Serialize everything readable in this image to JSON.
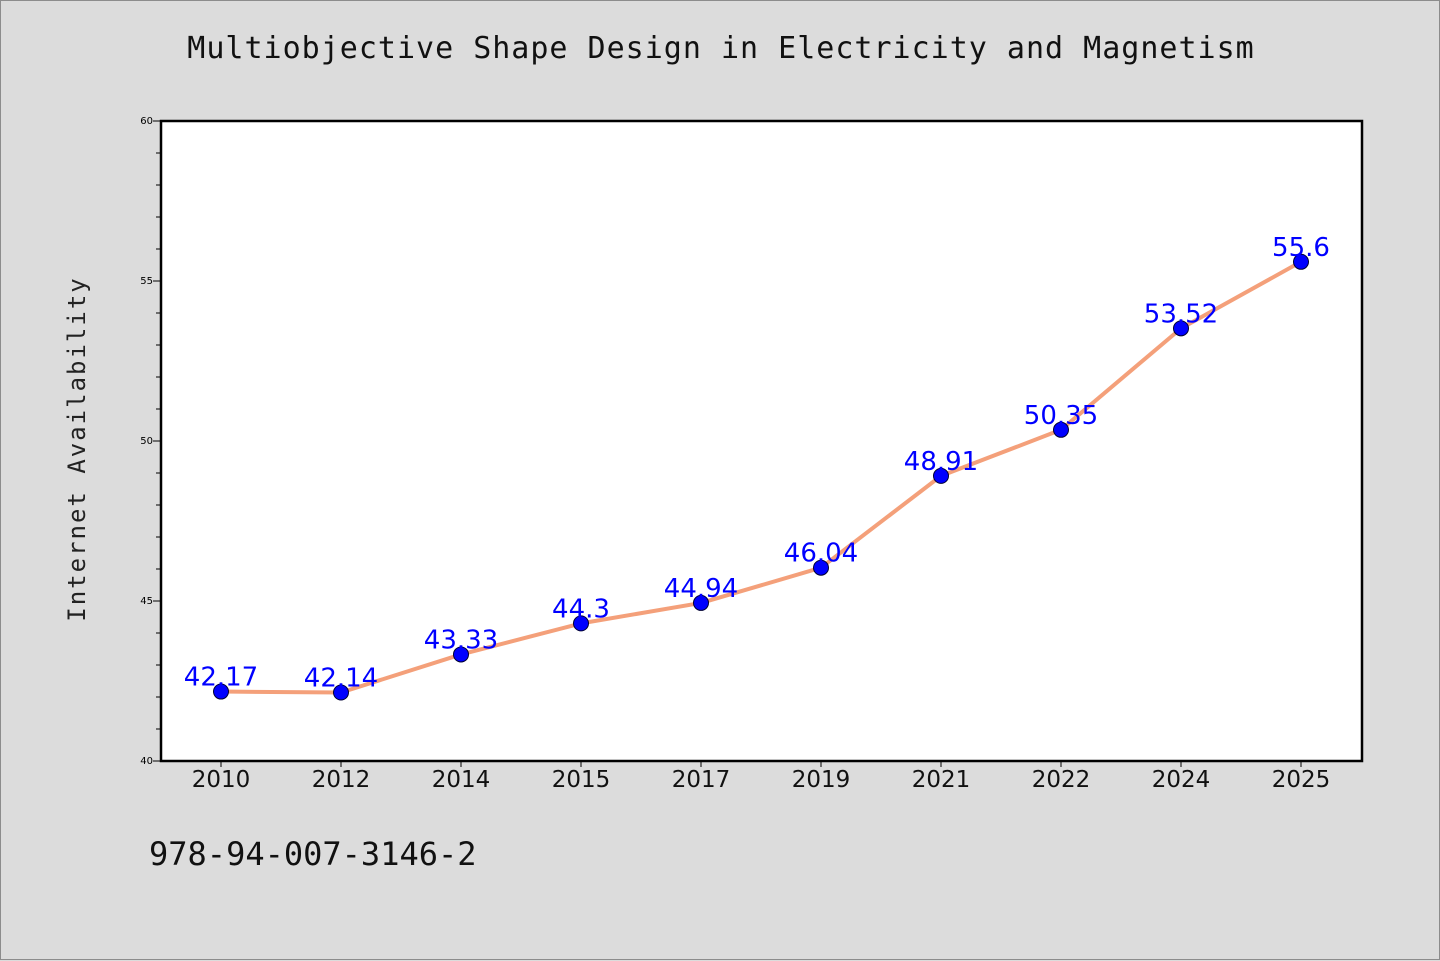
{
  "chart_data": {
    "type": "line",
    "title": "Multiobjective Shape Design in Electricity and Magnetism",
    "xlabel": "",
    "ylabel": "Internet Availability",
    "categories": [
      "2010",
      "2012",
      "2014",
      "2015",
      "2017",
      "2019",
      "2021",
      "2022",
      "2024",
      "2025"
    ],
    "series": [
      {
        "values": [
          42.17,
          42.14,
          43.33,
          44.3,
          44.94,
          46.04,
          48.91,
          50.35,
          53.52,
          55.6
        ],
        "data_labels": [
          "42.17",
          "42.14",
          "43.33",
          "44.3",
          "44.94",
          "46.04",
          "48.91",
          "50.35",
          "53.52",
          "55.6"
        ],
        "line_color": "#f4a07a",
        "marker_color": "#0000ff",
        "label_color": "#0000ff"
      }
    ],
    "ylim": [
      40,
      60
    ],
    "y_ticks": [
      "40",
      "45",
      "50",
      "55",
      "60"
    ],
    "grid": false,
    "legend": "none"
  },
  "footer": {
    "code": "978-94-007-3146-2"
  }
}
